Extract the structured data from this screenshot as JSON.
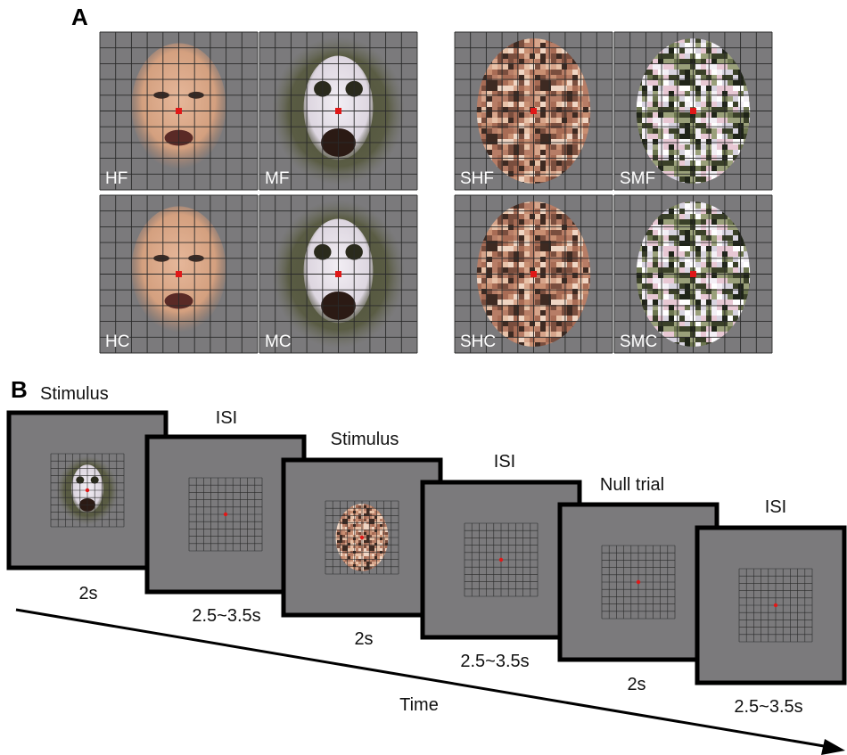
{
  "panel_a": {
    "label": "A",
    "images": [
      {
        "label": "HF"
      },
      {
        "label": "MF"
      },
      {
        "label": "SHF"
      },
      {
        "label": "SMF"
      },
      {
        "label": "HC"
      },
      {
        "label": "MC"
      },
      {
        "label": "SHC"
      },
      {
        "label": "SMC"
      }
    ]
  },
  "panel_b": {
    "label": "B",
    "frames": [
      {
        "title": "Stimulus",
        "duration": "2s"
      },
      {
        "title": "ISI",
        "duration": "2.5~3.5s"
      },
      {
        "title": "Stimulus",
        "duration": "2s"
      },
      {
        "title": "ISI",
        "duration": "2.5~3.5s"
      },
      {
        "title": "Null trial",
        "duration": "2s"
      },
      {
        "title": "ISI",
        "duration": "2.5~3.5s"
      }
    ],
    "axis_label": "Time"
  }
}
